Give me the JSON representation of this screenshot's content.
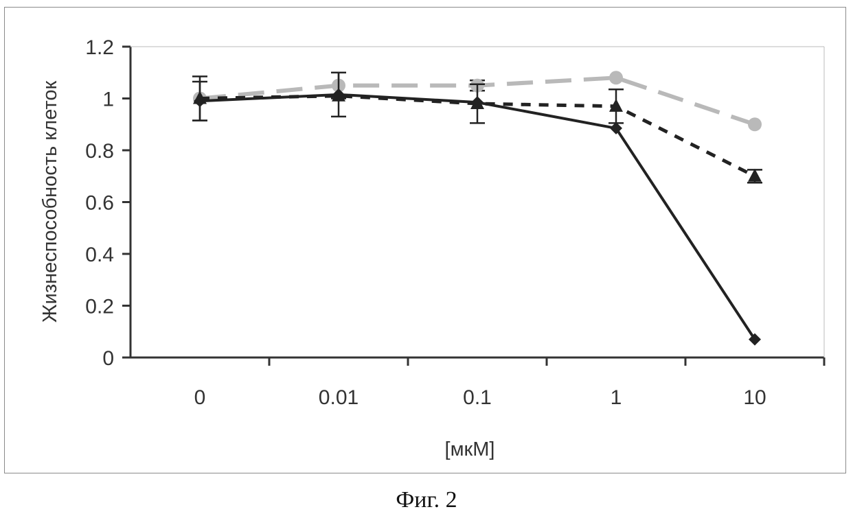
{
  "caption": "Фиг. 2",
  "chart_data": {
    "type": "line",
    "title": "",
    "xlabel": "[мкМ]",
    "ylabel": "Жизнеспособность клеток",
    "categories": [
      "0",
      "0.01",
      "0.1",
      "1",
      "10"
    ],
    "ylim": [
      0,
      1.2
    ],
    "yticks": [
      0,
      0.2,
      0.4,
      0.6,
      0.8,
      1,
      1.2
    ],
    "ytick_labels": [
      "0",
      "0.2",
      "0.4",
      "0.6",
      "0.8",
      "1",
      "1.2"
    ],
    "grid": false,
    "legend": "none",
    "series": [
      {
        "name": "series-circle-dashed",
        "marker": "circle",
        "line": "long-dash",
        "color": "#b9b9b9",
        "values": [
          1.0,
          1.05,
          1.05,
          1.08,
          0.9
        ],
        "errors": [
          0.085,
          0.05,
          0.02,
          0.0,
          0.0
        ]
      },
      {
        "name": "series-triangle-dotted",
        "marker": "triangle",
        "line": "short-dash",
        "color": "#222222",
        "values": [
          1.0,
          1.01,
          0.98,
          0.97,
          0.7
        ],
        "errors": [
          0.0,
          0.0,
          0.075,
          0.065,
          0.025
        ]
      },
      {
        "name": "series-diamond-solid",
        "marker": "diamond",
        "line": "solid",
        "color": "#222222",
        "values": [
          0.99,
          1.015,
          0.985,
          0.885,
          0.07
        ],
        "errors": [
          0.075,
          0.085,
          0.0,
          0.0,
          0.0
        ]
      }
    ]
  }
}
